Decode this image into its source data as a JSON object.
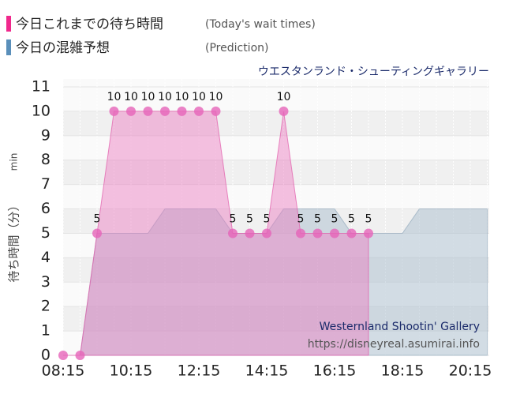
{
  "chart_data": {
    "type": "area",
    "title": "ウエスタンランド・シューティングギャラリー",
    "y_label": "待ち時間（分）",
    "y_unit": "min",
    "watermark": [
      "Westernland Shootin' Gallery",
      "https://disneyreal.asumirai.info"
    ],
    "categories": [
      "08:15",
      null,
      null,
      null,
      "10:15",
      null,
      null,
      null,
      "12:15",
      null,
      null,
      null,
      "14:15",
      null,
      null,
      null,
      "16:15",
      null,
      null,
      null,
      "18:15",
      null,
      null,
      null,
      "20:15",
      null
    ],
    "series": [
      {
        "name": "今日これまでの待ち時間",
        "note": "(Today's wait times)",
        "color": "#f0288c",
        "values": [
          0,
          0,
          5,
          10,
          10,
          10,
          10,
          10,
          10,
          10,
          5,
          5,
          5,
          10,
          5,
          5,
          5,
          5,
          5,
          null,
          null,
          null,
          null,
          null,
          null,
          null
        ],
        "value_labels": [
          null,
          null,
          "5",
          "10",
          "10",
          "10",
          "10",
          "10",
          "10",
          "10",
          "5",
          "5",
          "5",
          "10",
          "5",
          "5",
          "5",
          "5",
          "5",
          null,
          null,
          null,
          null,
          null,
          null,
          null
        ]
      },
      {
        "name": "今日の混雑予想",
        "note": "(Prediction)",
        "color": "#5a8fba",
        "values": [
          null,
          0,
          5,
          5,
          5,
          5,
          6,
          6,
          6,
          6,
          5,
          5,
          5,
          6,
          6,
          6,
          6,
          5,
          5,
          5,
          5,
          6,
          6,
          6,
          6,
          6
        ]
      }
    ],
    "ylim": [
      0,
      11
    ],
    "yticks": [
      0,
      1,
      2,
      3,
      4,
      5,
      6,
      7,
      8,
      9,
      10,
      11
    ],
    "grid": true
  }
}
